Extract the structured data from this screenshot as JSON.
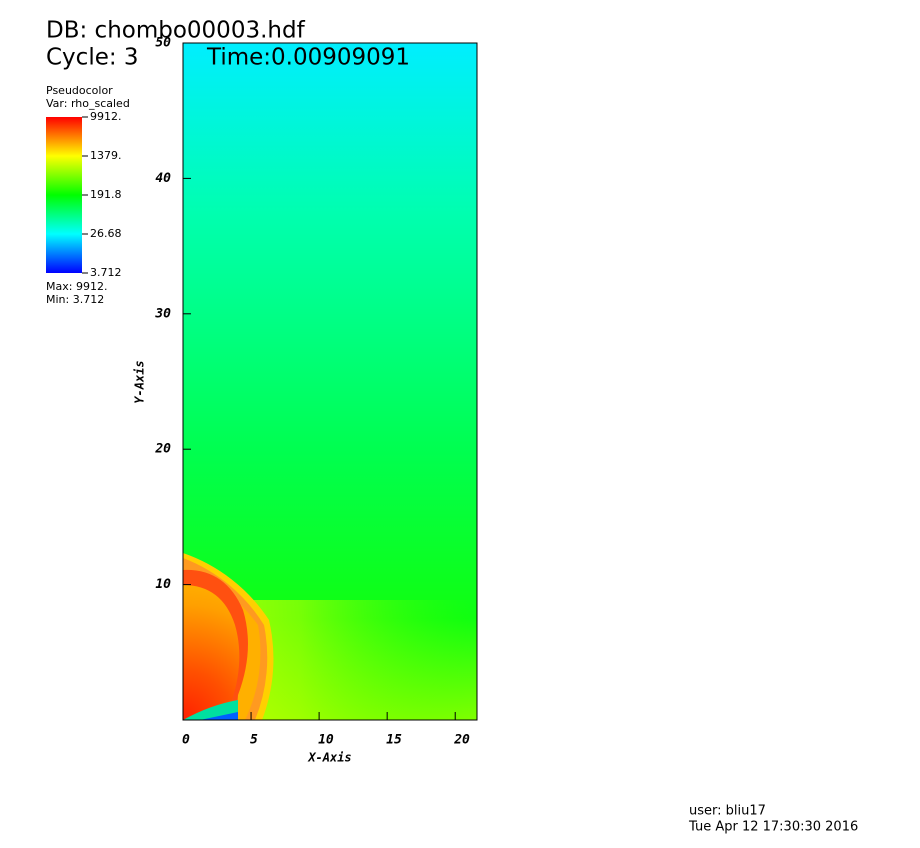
{
  "chart_data": {
    "type": "pseudocolor",
    "database": "DB: chombo00003.hdf",
    "cycle": "Cycle: 3",
    "time": "Time:0.00909091",
    "xlabel": "X-Axis",
    "ylabel": "Y-Axis",
    "xlim": [
      0,
      21.6
    ],
    "ylim": [
      0,
      50
    ],
    "xticks": [
      0,
      5,
      10,
      15,
      20
    ],
    "yticks": [
      10,
      20,
      30,
      40,
      50
    ],
    "legend": {
      "plot": "Pseudocolor",
      "variable": "Var: rho_scaled",
      "max": "Max: 9912.",
      "min": "Min: 3.712",
      "scale": "log",
      "range": [
        3.712,
        9912
      ],
      "ticks": [
        {
          "value": 9912,
          "label": "9912."
        },
        {
          "value": 1379,
          "label": "1379."
        },
        191.8,
        26.68,
        3.712
      ]
    },
    "user": "user: bliu17",
    "date": "Tue Apr 12 17:30:30 2016"
  }
}
